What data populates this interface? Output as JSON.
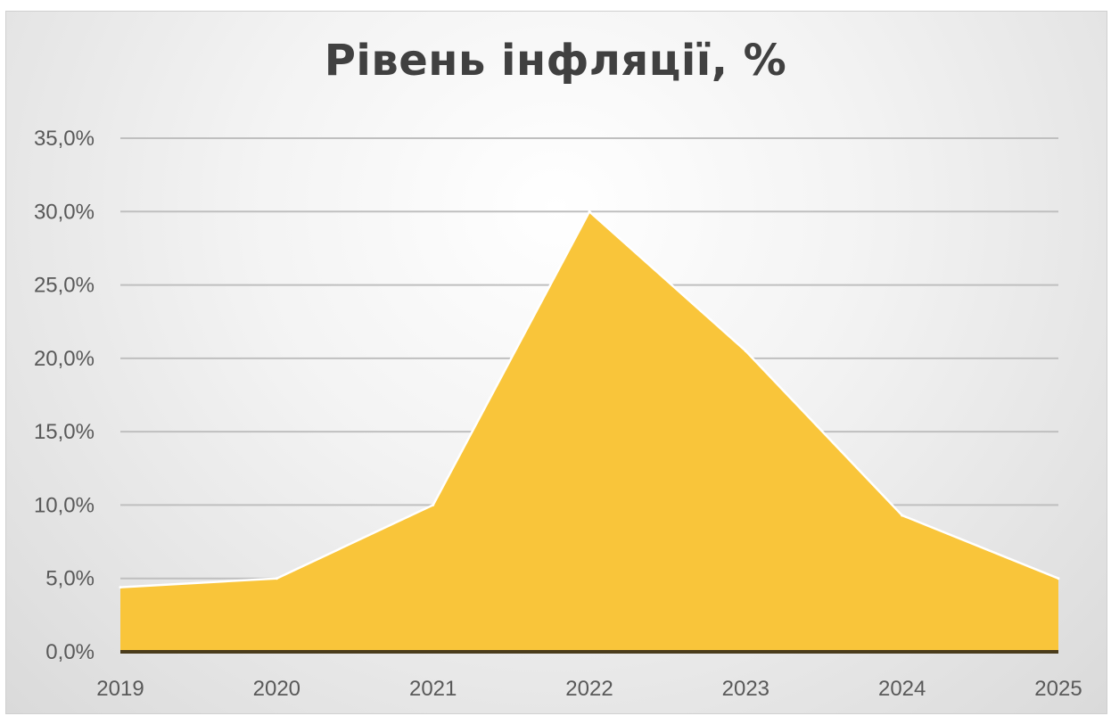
{
  "chart_data": {
    "type": "area",
    "title": "Рівень інфляції, %",
    "x": [
      "2019",
      "2020",
      "2021",
      "2022",
      "2023",
      "2024",
      "2025"
    ],
    "values": [
      4.4,
      5.0,
      10.0,
      30.0,
      20.5,
      9.3,
      5.0
    ],
    "ylim": [
      0,
      35
    ],
    "yticks": [
      0,
      5,
      10,
      15,
      20,
      25,
      30,
      35
    ],
    "ytick_labels": [
      "0,0%",
      "5,0%",
      "10,0%",
      "15,0%",
      "20,0%",
      "25,0%",
      "30,0%",
      "35,0%"
    ],
    "xlabel": "",
    "ylabel": "",
    "grid": true,
    "legend": "none",
    "colors": {
      "area": "#f9c53a",
      "area_edge": "#ffffff",
      "grid": "#bfbfbf",
      "baseline": "#4a3c1c"
    }
  }
}
